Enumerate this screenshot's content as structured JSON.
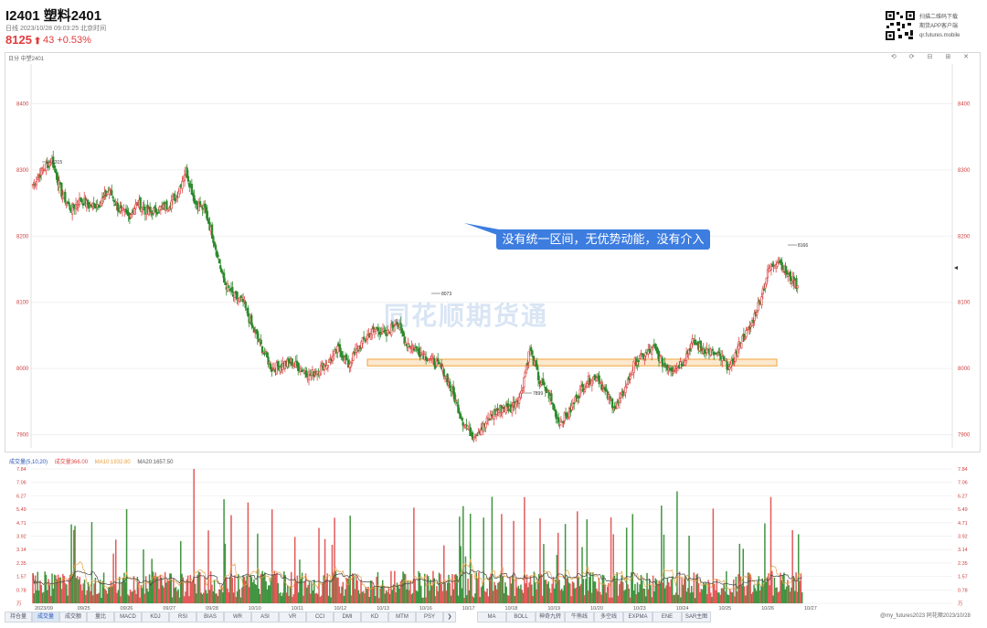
{
  "header": {
    "title": "I2401 塑料2401",
    "subtitle": "日线 2023/10/28 09:03:25 北京时间",
    "price": "8125",
    "price_arrow": "⬆",
    "change": "43 +0.53%",
    "qr_note_lines": [
      "扫描二维码下载",
      "期货APP客户端",
      "qr.futures.mobile"
    ]
  },
  "panel": {
    "label": "日分 中塑2401",
    "tools": "⟲ ⟳ ⊟ ⊞ ✕",
    "callout": "没有统一区间，无优势动能，没有介入",
    "watermark": "同花顺期货通",
    "marks": {
      "high1": "8315",
      "high2": "8073",
      "low": "7899",
      "high3": "8166"
    }
  },
  "chart_data": {
    "type": "candlestick",
    "y_axis_labels": [
      "8400",
      "8300",
      "8200",
      "8100",
      "8000",
      "7900"
    ],
    "ylim": [
      7880,
      8460
    ],
    "x_labels": [
      "2023/09",
      "09/25",
      "09/26",
      "09/27",
      "09/28",
      "10/10",
      "10/11",
      "10/12",
      "10/13",
      "10/16",
      "10/17",
      "10/18",
      "10/19",
      "10/20",
      "10/23",
      "10/24",
      "10/25",
      "10/26",
      "10/27"
    ],
    "support_band": [
      8004,
      8014
    ],
    "price_path": [
      8278,
      8300,
      8315,
      8265,
      8240,
      8255,
      8245,
      8250,
      8270,
      8240,
      8230,
      8250,
      8235,
      8240,
      8245,
      8260,
      8300,
      8250,
      8240,
      8190,
      8130,
      8110,
      8100,
      8060,
      8030,
      8000,
      8005,
      8010,
      8000,
      7990,
      8000,
      8010,
      8030,
      8005,
      8030,
      8050,
      8060,
      8050,
      8073,
      8040,
      8030,
      8020,
      8010,
      7995,
      7960,
      7920,
      7899,
      7910,
      7930,
      7940,
      7940,
      7960,
      8030,
      7980,
      7960,
      7920,
      7930,
      7960,
      7980,
      7990,
      7960,
      7940,
      7970,
      8010,
      8020,
      8030,
      8005,
      8000,
      8010,
      8040,
      8030,
      8025,
      8015,
      8000,
      8040,
      8060,
      8100,
      8150,
      8166,
      8140,
      8125
    ],
    "volume": {
      "label": "成交量(5,10,20)",
      "vol": "成交量366.00",
      "ma10": "MA10:1932.80",
      "ma20": "MA20:1657.50",
      "ticks": [
        "7.84",
        "7.06",
        "6.27",
        "5.49",
        "4.71",
        "3.92",
        "3.14",
        "2.35",
        "1.57",
        "0.78",
        "万"
      ]
    }
  },
  "tabs_left": [
    "持仓量",
    "成交量",
    "成交额",
    "量比",
    "MACD",
    "KDJ",
    "RSI",
    "BIAS",
    "WR",
    "ASI",
    "VR",
    "CCI",
    "DMI",
    "KD",
    "MTM",
    "PSY"
  ],
  "tabs_right": [
    "MA",
    "BOLL",
    "神奇九转",
    "牛熊线",
    "多空线",
    "EXPMA",
    "ENE",
    "SAR主图"
  ],
  "tabs_arrow": "❯",
  "footer_watermark": "@my_futures2023  同花顺2023/10/28",
  "colors": {
    "up": "#e04848",
    "down": "#2d8a2d",
    "band": "#f0a23a",
    "callout": "#3d7de0"
  }
}
